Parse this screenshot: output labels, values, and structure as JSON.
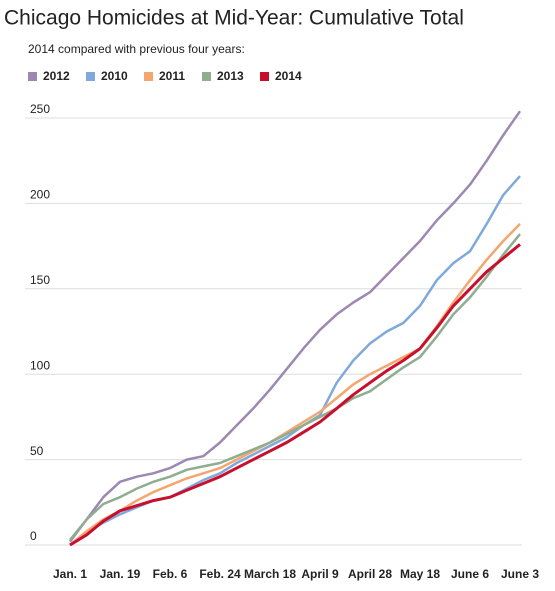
{
  "chart_data": {
    "type": "line",
    "title": "Chicago Homicides at Mid-Year: Cumulative Total",
    "subtitle": "2014 compared with previous four years:",
    "categories": [
      "Jan. 1",
      null,
      null,
      "Jan. 19",
      null,
      null,
      "Feb. 6",
      null,
      null,
      "Feb. 24",
      null,
      null,
      "March 18",
      null,
      null,
      "April 9",
      null,
      null,
      "April 28",
      null,
      null,
      "May 18",
      null,
      null,
      "June 6",
      null,
      null,
      "June 3"
    ],
    "series": [
      {
        "name": "2012",
        "color": "#9d88b3",
        "values": [
          2,
          15,
          28,
          37,
          40,
          42,
          45,
          50,
          52,
          60,
          70,
          80,
          91,
          103,
          115,
          126,
          135,
          142,
          148,
          158,
          168,
          178,
          190,
          200,
          211,
          225,
          240,
          254
        ]
      },
      {
        "name": "2010",
        "color": "#80a9db",
        "values": [
          0,
          8,
          13,
          18,
          22,
          26,
          28,
          33,
          38,
          42,
          48,
          53,
          58,
          63,
          70,
          76,
          95,
          108,
          118,
          125,
          130,
          140,
          155,
          165,
          172,
          188,
          205,
          216
        ]
      },
      {
        "name": "2011",
        "color": "#f4a66e",
        "values": [
          0,
          8,
          15,
          20,
          26,
          31,
          35,
          39,
          42,
          45,
          50,
          55,
          60,
          66,
          72,
          78,
          86,
          94,
          100,
          105,
          110,
          115,
          128,
          142,
          155,
          167,
          178,
          188
        ]
      },
      {
        "name": "2013",
        "color": "#8fad8f",
        "values": [
          3,
          15,
          24,
          28,
          33,
          37,
          40,
          44,
          46,
          48,
          52,
          56,
          60,
          65,
          70,
          75,
          80,
          86,
          90,
          97,
          104,
          110,
          122,
          135,
          145,
          157,
          170,
          182
        ]
      },
      {
        "name": "2014",
        "color": "#c8102e",
        "values": [
          0,
          6,
          14,
          20,
          23,
          26,
          28,
          32,
          36,
          40,
          45,
          50,
          55,
          60,
          66,
          72,
          80,
          88,
          95,
          102,
          108,
          115,
          127,
          140,
          150,
          160,
          168,
          176
        ]
      }
    ],
    "ylim": [
      0,
      250
    ],
    "yticks": [
      0,
      50,
      100,
      150,
      200,
      250
    ],
    "grid": true
  }
}
